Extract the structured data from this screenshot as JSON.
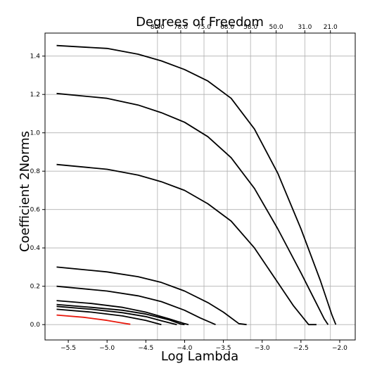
{
  "chart_data": {
    "type": "line",
    "title": "",
    "xlabel": "Log Lambda",
    "ylabel": "Coefficient 2Norms",
    "top_axis_label": "Degrees of Freedom",
    "xlim": [
      -5.8,
      -1.8
    ],
    "ylim": [
      -0.08,
      1.52
    ],
    "grid": true,
    "x_ticks": [
      -5.5,
      -5.0,
      -4.5,
      -4.0,
      -3.5,
      -3.0,
      -2.5,
      -2.0
    ],
    "x_tick_labels": [
      "−5.5",
      "−5.0",
      "−4.5",
      "−4.0",
      "−3.5",
      "−3.0",
      "−2.5",
      "−2.0"
    ],
    "y_ticks": [
      0.0,
      0.2,
      0.4,
      0.6,
      0.8,
      1.0,
      1.2,
      1.4
    ],
    "y_tick_labels": [
      "0.0",
      "0.2",
      "0.4",
      "0.6",
      "0.8",
      "1.0",
      "1.2",
      "1.4"
    ],
    "top_ticks": [
      {
        "x": -4.35,
        "label": "80.0"
      },
      {
        "x": -4.05,
        "label": "78.0"
      },
      {
        "x": -3.75,
        "label": "75.0"
      },
      {
        "x": -3.45,
        "label": "68.0"
      },
      {
        "x": -3.15,
        "label": "58.0"
      },
      {
        "x": -2.82,
        "label": "50.0"
      },
      {
        "x": -2.45,
        "label": "31.0"
      },
      {
        "x": -2.12,
        "label": "21.0"
      }
    ],
    "series": [
      {
        "color": "#000000",
        "x": [
          -5.65,
          -5.0,
          -4.6,
          -4.3,
          -4.0,
          -3.7,
          -3.4,
          -3.1,
          -2.8,
          -2.5,
          -2.25,
          -2.1,
          -2.05
        ],
        "y": [
          1.455,
          1.44,
          1.41,
          1.375,
          1.33,
          1.27,
          1.18,
          1.02,
          0.79,
          0.5,
          0.23,
          0.05,
          0.0
        ]
      },
      {
        "color": "#000000",
        "x": [
          -5.65,
          -5.0,
          -4.6,
          -4.3,
          -4.0,
          -3.7,
          -3.4,
          -3.1,
          -2.8,
          -2.5,
          -2.3,
          -2.2,
          -2.15
        ],
        "y": [
          1.205,
          1.18,
          1.145,
          1.105,
          1.055,
          0.98,
          0.87,
          0.71,
          0.5,
          0.27,
          0.11,
          0.03,
          0.0
        ]
      },
      {
        "color": "#000000",
        "x": [
          -5.65,
          -5.0,
          -4.6,
          -4.3,
          -4.0,
          -3.7,
          -3.4,
          -3.1,
          -2.8,
          -2.6,
          -2.4,
          -2.3
        ],
        "y": [
          0.835,
          0.81,
          0.78,
          0.745,
          0.7,
          0.63,
          0.54,
          0.4,
          0.22,
          0.1,
          0.0,
          0.0
        ]
      },
      {
        "color": "#000000",
        "x": [
          -5.65,
          -5.0,
          -4.6,
          -4.3,
          -4.0,
          -3.7,
          -3.5,
          -3.3,
          -3.2
        ],
        "y": [
          0.3,
          0.275,
          0.25,
          0.22,
          0.175,
          0.115,
          0.065,
          0.005,
          0.0
        ]
      },
      {
        "color": "#000000",
        "x": [
          -5.65,
          -5.0,
          -4.6,
          -4.3,
          -4.0,
          -3.8,
          -3.6
        ],
        "y": [
          0.2,
          0.175,
          0.15,
          0.12,
          0.075,
          0.035,
          0.0
        ]
      },
      {
        "color": "#000000",
        "x": [
          -5.65,
          -5.2,
          -4.8,
          -4.5,
          -4.2,
          -4.0,
          -3.95
        ],
        "y": [
          0.125,
          0.11,
          0.09,
          0.065,
          0.03,
          0.005,
          0.0
        ]
      },
      {
        "color": "#000000",
        "x": [
          -5.65,
          -5.2,
          -4.8,
          -4.5,
          -4.2,
          -4.05,
          -4.0
        ],
        "y": [
          0.105,
          0.09,
          0.075,
          0.055,
          0.025,
          0.003,
          0.0
        ]
      },
      {
        "color": "#000000",
        "x": [
          -5.65,
          -5.2,
          -4.8,
          -4.5,
          -4.3,
          -4.1
        ],
        "y": [
          0.095,
          0.08,
          0.062,
          0.042,
          0.02,
          0.0
        ]
      },
      {
        "color": "#000000",
        "x": [
          -5.65,
          -5.2,
          -4.8,
          -4.5,
          -4.35,
          -4.3
        ],
        "y": [
          0.08,
          0.065,
          0.045,
          0.022,
          0.005,
          0.0
        ]
      },
      {
        "color": "#e8180c",
        "x": [
          -5.65,
          -5.3,
          -5.0,
          -4.8,
          -4.7
        ],
        "y": [
          0.05,
          0.038,
          0.022,
          0.008,
          0.002
        ]
      }
    ]
  }
}
